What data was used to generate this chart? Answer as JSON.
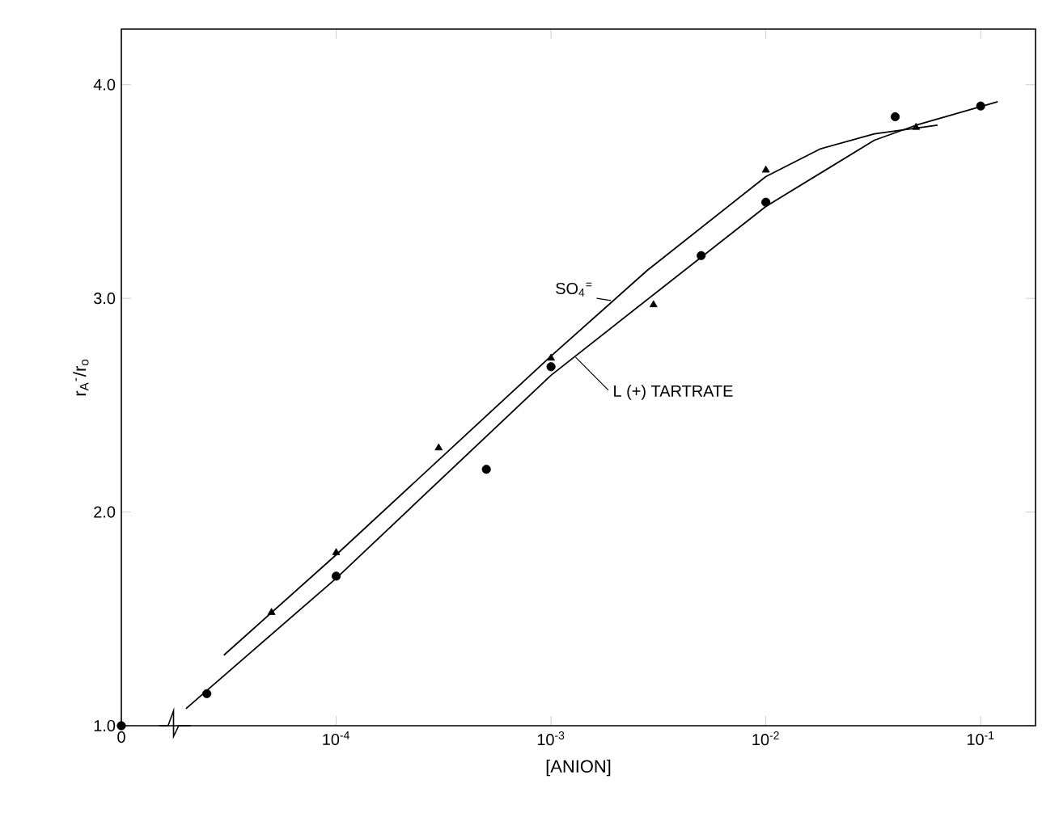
{
  "chart_data": {
    "type": "scatter",
    "ylabel": "r$_{A}$$^{-}$/r$_{o}$",
    "xlabel": "[ANION]",
    "log": "x",
    "grid": false,
    "xlim": [
      1e-05,
      0.18
    ],
    "ylim": [
      1.0,
      4.26
    ],
    "xticks": [
      {
        "value": 1e-05,
        "label": "0"
      },
      {
        "value": 0.0001,
        "label": "10$^{-4}$"
      },
      {
        "value": 0.001,
        "label": "10$^{-3}$"
      },
      {
        "value": 0.01,
        "label": "10$^{-2}$"
      },
      {
        "value": 0.1,
        "label": "10$^{-1}$"
      }
    ],
    "yticks": [
      {
        "value": 1.0,
        "label": "1.0"
      },
      {
        "value": 2.0,
        "label": "2.0"
      },
      {
        "value": 3.0,
        "label": "3.0"
      },
      {
        "value": 4.0,
        "label": "4.0"
      }
    ],
    "series": [
      {
        "type": "scatter",
        "marker": "triangle",
        "color": "#000000",
        "x": [
          5e-05,
          0.0001,
          0.0003,
          0.001,
          0.003,
          0.01,
          0.05
        ],
        "values": [
          1.53,
          1.81,
          2.3,
          2.72,
          2.97,
          3.6,
          3.8
        ]
      },
      {
        "type": "scatter",
        "marker": "circle",
        "color": "#000000",
        "x": [
          1e-05,
          2.5e-05,
          0.0001,
          0.0005,
          0.001,
          0.005,
          0.01,
          0.04,
          0.1
        ],
        "values": [
          1.0,
          1.15,
          1.7,
          2.2,
          2.68,
          3.2,
          3.45,
          3.85,
          3.9
        ]
      },
      {
        "type": "line",
        "name": "SO$_{4}$$^{=}$",
        "marker": "none",
        "line_style": "solid",
        "color": "#000000",
        "x": [
          3e-05,
          0.0001,
          0.001,
          0.0028,
          0.01,
          0.018,
          0.032,
          0.063
        ],
        "values": [
          1.33,
          1.8,
          2.73,
          3.13,
          3.57,
          3.7,
          3.77,
          3.81
        ]
      },
      {
        "type": "line",
        "name": "L (+) TARTRATE",
        "marker": "none",
        "line_style": "solid",
        "color": "#000000",
        "x": [
          2e-05,
          0.0001,
          0.001,
          0.01,
          0.032,
          0.05,
          0.12
        ],
        "values": [
          1.08,
          1.69,
          2.64,
          3.43,
          3.74,
          3.81,
          3.92
        ]
      }
    ]
  }
}
